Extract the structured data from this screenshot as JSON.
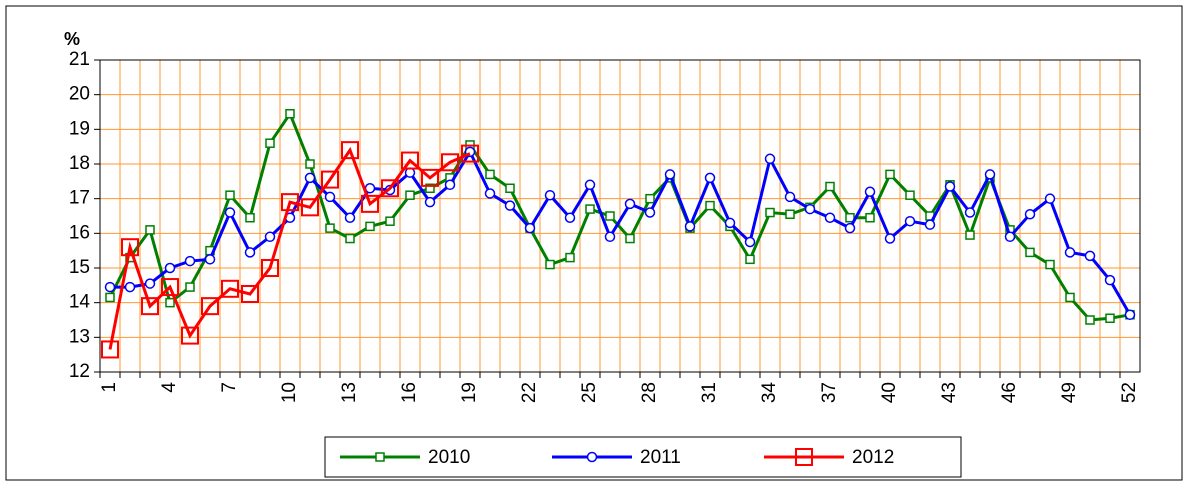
{
  "chart_data": {
    "type": "line",
    "y_label": "%",
    "categories": [
      "1",
      null,
      null,
      "4",
      null,
      null,
      "7",
      null,
      null,
      "10",
      null,
      null,
      "13",
      null,
      null,
      "16",
      null,
      null,
      "19",
      null,
      null,
      "22",
      null,
      null,
      "25",
      null,
      null,
      "28",
      null,
      null,
      "31",
      null,
      null,
      "34",
      null,
      null,
      "37",
      null,
      null,
      "40",
      null,
      null,
      "43",
      null,
      null,
      "46",
      null,
      null,
      "49",
      null,
      null,
      "52"
    ],
    "series": [
      {
        "name": "2010",
        "color": "#008000",
        "marker": "square",
        "values": [
          14.15,
          15.3,
          16.1,
          14.0,
          14.45,
          15.5,
          17.1,
          16.45,
          18.6,
          19.45,
          18.0,
          16.15,
          15.85,
          16.2,
          16.35,
          17.1,
          17.3,
          17.6,
          18.55,
          17.7,
          17.3,
          16.15,
          15.1,
          15.3,
          16.7,
          16.5,
          15.85,
          17.0,
          17.6,
          16.15,
          16.8,
          16.2,
          15.25,
          16.6,
          16.55,
          16.75,
          17.35,
          16.45,
          16.45,
          17.7,
          17.1,
          16.5,
          17.4,
          15.95,
          17.6,
          16.1,
          15.45,
          15.1,
          14.15,
          13.5,
          13.55,
          13.65
        ]
      },
      {
        "name": "2011",
        "color": "#0000ff",
        "marker": "circle",
        "values": [
          14.45,
          14.45,
          14.55,
          15.0,
          15.2,
          15.25,
          16.6,
          15.45,
          15.9,
          16.45,
          17.6,
          17.05,
          16.45,
          17.3,
          17.25,
          17.75,
          16.9,
          17.4,
          18.35,
          17.15,
          16.8,
          16.15,
          17.1,
          16.45,
          17.4,
          15.9,
          16.85,
          16.6,
          17.7,
          16.2,
          17.6,
          16.3,
          15.75,
          18.15,
          17.05,
          16.7,
          16.45,
          16.15,
          17.2,
          15.85,
          16.35,
          16.25,
          17.35,
          16.6,
          17.7,
          15.9,
          16.55,
          17.0,
          15.45,
          15.35,
          14.65,
          13.65
        ]
      },
      {
        "name": "2012",
        "color": "#ff0000",
        "marker": "bigsquare",
        "values": [
          12.65,
          15.6,
          13.9,
          14.45,
          13.05,
          13.9,
          14.4,
          14.25,
          15.0,
          16.9,
          16.75,
          17.55,
          18.4,
          16.85,
          17.3,
          18.1,
          17.6,
          18.05,
          18.3,
          null,
          null,
          null,
          null,
          null,
          null,
          null,
          null,
          null,
          null,
          null,
          null,
          null,
          null,
          null,
          null,
          null,
          null,
          null,
          null,
          null,
          null,
          null,
          null,
          null,
          null,
          null,
          null,
          null,
          null,
          null,
          null,
          null
        ]
      }
    ],
    "ylim": [
      12,
      21
    ],
    "yticks": [
      12,
      13,
      14,
      15,
      16,
      17,
      18,
      19,
      20,
      21
    ],
    "grid": true,
    "grid_color": "#ff9933",
    "legend": "bottom"
  }
}
